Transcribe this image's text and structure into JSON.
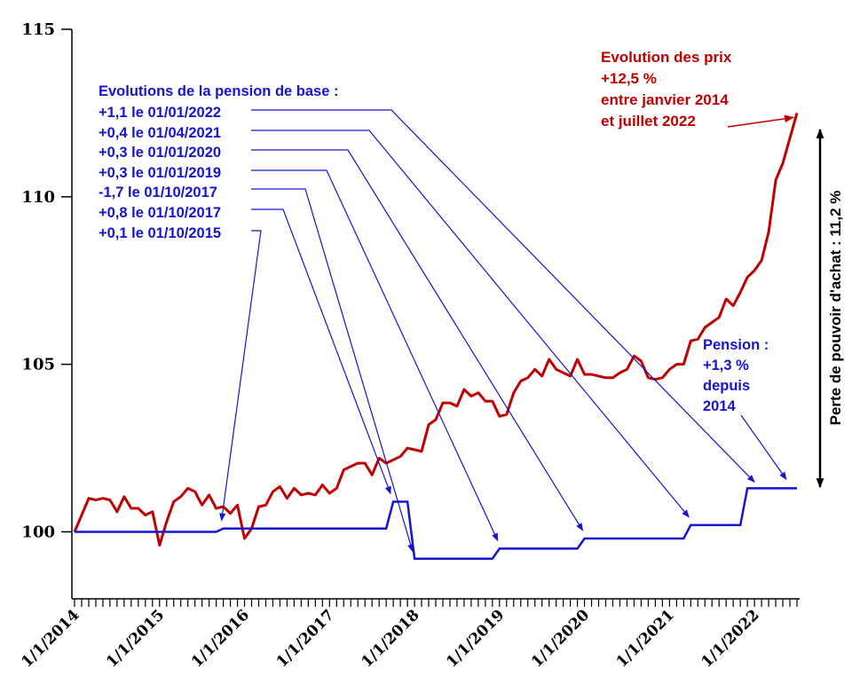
{
  "chart_data": {
    "type": "line",
    "ylim": [
      98,
      115
    ],
    "yticks": [
      100,
      105,
      110,
      115
    ],
    "x_tick_labels": [
      "1/1/2014",
      "1/1/2015",
      "1/1/2016",
      "1/1/2017",
      "1/1/2018",
      "1/1/2019",
      "1/1/2020",
      "1/1/2021",
      "1/1/2022"
    ],
    "series": [
      {
        "role": "prix",
        "color": "#c00000",
        "values": [
          100,
          100.5,
          101,
          100.95,
          101,
          100.95,
          100.6,
          101.05,
          100.7,
          100.7,
          100.5,
          100.6,
          99.6,
          100.3,
          100.9,
          101.05,
          101.3,
          101.2,
          100.8,
          101.1,
          100.7,
          100.75,
          100.55,
          100.8,
          99.8,
          100.1,
          100.75,
          100.8,
          101.2,
          101.35,
          101,
          101.3,
          101.1,
          101.15,
          101.1,
          101.4,
          101.15,
          101.3,
          101.85,
          101.95,
          102.05,
          102.05,
          101.7,
          102.2,
          102.05,
          102.15,
          102.25,
          102.5,
          102.45,
          102.4,
          103.2,
          103.35,
          103.85,
          103.85,
          103.75,
          104.25,
          104.05,
          104.15,
          103.9,
          103.9,
          103.45,
          103.5,
          104.15,
          104.5,
          104.6,
          104.85,
          104.65,
          105.15,
          104.85,
          104.75,
          104.65,
          105.15,
          104.7,
          104.7,
          104.65,
          104.6,
          104.6,
          104.75,
          104.85,
          105.25,
          105.1,
          104.6,
          104.55,
          104.6,
          104.85,
          105,
          105,
          105.7,
          105.75,
          106.1,
          106.25,
          106.4,
          106.95,
          106.75,
          107.15,
          107.6,
          107.8,
          108.1,
          108.95,
          110.5,
          111,
          111.75,
          112.5
        ]
      },
      {
        "role": "pension",
        "color": "#1414d2",
        "values": [
          100,
          100,
          100,
          100,
          100,
          100,
          100,
          100,
          100,
          100,
          100,
          100,
          100,
          100,
          100,
          100,
          100,
          100,
          100,
          100,
          100,
          100.1,
          100.1,
          100.1,
          100.1,
          100.1,
          100.1,
          100.1,
          100.1,
          100.1,
          100.1,
          100.1,
          100.1,
          100.1,
          100.1,
          100.1,
          100.1,
          100.1,
          100.1,
          100.1,
          100.1,
          100.1,
          100.1,
          100.1,
          100.1,
          100.9,
          100.9,
          100.9,
          99.2,
          99.2,
          99.2,
          99.2,
          99.2,
          99.2,
          99.2,
          99.2,
          99.2,
          99.2,
          99.2,
          99.2,
          99.5,
          99.5,
          99.5,
          99.5,
          99.5,
          99.5,
          99.5,
          99.5,
          99.5,
          99.5,
          99.5,
          99.5,
          99.8,
          99.8,
          99.8,
          99.8,
          99.8,
          99.8,
          99.8,
          99.8,
          99.8,
          99.8,
          99.8,
          99.8,
          99.8,
          99.8,
          99.8,
          100.2,
          100.2,
          100.2,
          100.2,
          100.2,
          100.2,
          100.2,
          100.2,
          101.3,
          101.3,
          101.3,
          101.3,
          101.3,
          101.3,
          101.3,
          101.3
        ]
      }
    ]
  },
  "annotations": {
    "pension_title": "Evolutions de la pension de base :",
    "pension_events": [
      {
        "label": "+1,1 le 01/01/2022",
        "target_index": 96,
        "target_value": 101.3
      },
      {
        "label": "+0,4 le 01/04/2021",
        "target_index": 87,
        "target_value": 100.2
      },
      {
        "label": "+0,3 le 01/01/2020",
        "target_index": 72,
        "target_value": 99.8
      },
      {
        "label": "+0,3 le 01/01/2019",
        "target_index": 60,
        "target_value": 99.5
      },
      {
        "label": "-1,7 le 01/10/2017",
        "target_index": 48.5,
        "target_value": 99.2
      },
      {
        "label": "+0,8 le 01/10/2017",
        "target_index": 45,
        "target_value": 100.9
      },
      {
        "label": "+0,1 le 01/10/2015",
        "target_index": 21,
        "target_value": 100.1
      }
    ],
    "prix_lines": [
      "Evolution des prix",
      "+12,5 %",
      "entre janvier 2014",
      "et juillet 2022"
    ],
    "pension_lines": [
      "Pension :",
      "+1,3 %",
      "depuis",
      "2014"
    ],
    "side_label": "Perte de pouvoir d'achat : 11,2 %"
  }
}
